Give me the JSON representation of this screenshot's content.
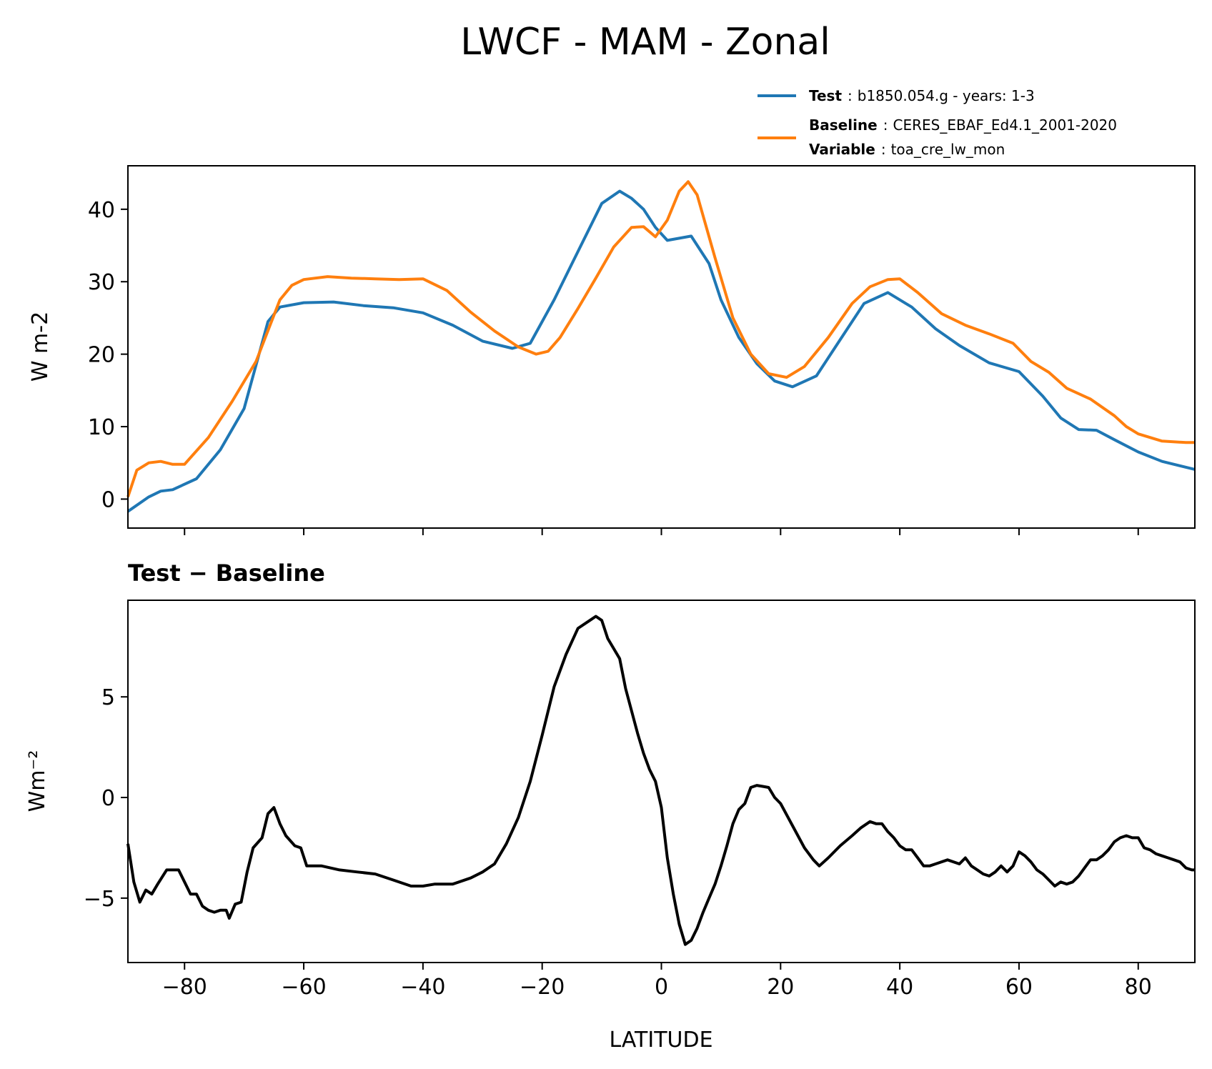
{
  "figure": {
    "title": "LWCF - MAM - Zonal"
  },
  "colors": {
    "test": "#1f77b4",
    "baseline": "#ff7f0e",
    "diff": "#000000"
  },
  "legend": {
    "test_key": "Test",
    "test_value": "b1850.054.g - years: 1-3",
    "baseline_key": "Baseline",
    "baseline_value": "CERES_EBAF_Ed4.1_2001-2020",
    "variable_key": "Variable",
    "variable_value": "toa_cre_lw_mon",
    "separator": ":"
  },
  "chart_data": [
    {
      "type": "line",
      "title": "",
      "xlabel": "",
      "ylabel": "W m-2",
      "xlim": [
        -89.5,
        89.5
      ],
      "ylim": [
        -4,
        46
      ],
      "yticks": [
        0,
        10,
        20,
        30,
        40
      ],
      "ytick_labels": [
        "0",
        "10",
        "20",
        "30",
        "40"
      ],
      "xticks": [
        -80,
        -60,
        -40,
        -20,
        0,
        20,
        40,
        60,
        80
      ],
      "series": [
        {
          "name": "Test",
          "x": [
            -89.5,
            -86,
            -84,
            -82,
            -78,
            -74,
            -70,
            -66,
            -64,
            -60,
            -55,
            -50,
            -45,
            -40,
            -35,
            -30,
            -25,
            -22,
            -18,
            -15,
            -10,
            -7,
            -5,
            -3,
            -1,
            1,
            3,
            5,
            8,
            10,
            13,
            16,
            19,
            22,
            26,
            30,
            34,
            38,
            42,
            46,
            50,
            55,
            60,
            64,
            67,
            70,
            73,
            76,
            80,
            84,
            89.5
          ],
          "values": [
            -1.7,
            0.3,
            1.1,
            1.3,
            2.8,
            6.8,
            12.5,
            24.5,
            26.5,
            27.1,
            27.2,
            26.7,
            26.4,
            25.7,
            24,
            21.8,
            20.8,
            21.5,
            27.5,
            32.5,
            40.8,
            42.5,
            41.5,
            40,
            37.5,
            35.7,
            36,
            36.3,
            32.5,
            27.5,
            22.3,
            18.7,
            16.3,
            15.5,
            17,
            22,
            27,
            28.5,
            26.5,
            23.5,
            21.2,
            18.8,
            17.6,
            14.2,
            11.2,
            9.6,
            9.5,
            8.2,
            6.5,
            5.2,
            4.1
          ]
        },
        {
          "name": "Baseline",
          "x": [
            -89.5,
            -88,
            -86,
            -84,
            -82,
            -80,
            -76,
            -72,
            -68,
            -64,
            -62,
            -60,
            -56,
            -52,
            -48,
            -44,
            -40,
            -36,
            -32,
            -28,
            -24,
            -21,
            -19,
            -17,
            -14,
            -11,
            -8,
            -5,
            -3,
            -1,
            1,
            3,
            4.5,
            6,
            9,
            12,
            15,
            18,
            21,
            24,
            28,
            32,
            35,
            38,
            40,
            43,
            47,
            51,
            55,
            59,
            62,
            65,
            68,
            72,
            76,
            78,
            80,
            84,
            88,
            89.5
          ],
          "values": [
            0.3,
            4,
            5,
            5.2,
            4.8,
            4.8,
            8.5,
            13.5,
            19,
            27.5,
            29.5,
            30.3,
            30.7,
            30.5,
            30.4,
            30.3,
            30.4,
            28.8,
            25.8,
            23.2,
            21,
            20,
            20.4,
            22.3,
            26.3,
            30.5,
            34.8,
            37.5,
            37.6,
            36.2,
            38.5,
            42.5,
            43.8,
            42,
            33.3,
            25,
            20,
            17.3,
            16.8,
            18.3,
            22.3,
            27,
            29.3,
            30.3,
            30.4,
            28.5,
            25.6,
            24,
            22.8,
            21.5,
            19,
            17.5,
            15.3,
            13.8,
            11.5,
            10,
            9,
            8,
            7.8,
            7.8
          ]
        }
      ]
    },
    {
      "type": "line",
      "title": "Test − Baseline",
      "xlabel": "LATITUDE",
      "ylabel": "Wm⁻²",
      "xlim": [
        -89.5,
        89.5
      ],
      "ylim": [
        -8.2,
        9.8
      ],
      "yticks": [
        -5,
        0,
        5
      ],
      "ytick_labels": [
        "−5",
        "0",
        "5"
      ],
      "xticks": [
        -80,
        -60,
        -40,
        -20,
        0,
        20,
        40,
        60,
        80
      ],
      "xtick_labels": [
        "−80",
        "−60",
        "−40",
        "−20",
        "0",
        "20",
        "40",
        "60",
        "80"
      ],
      "series": [
        {
          "name": "Test − Baseline",
          "x": [
            -89.5,
            -88.5,
            -87.5,
            -86.5,
            -85.5,
            -84.5,
            -83,
            -81,
            -79,
            -78,
            -77,
            -76,
            -75,
            -74,
            -73,
            -72.5,
            -71.5,
            -70.5,
            -69.5,
            -68.5,
            -67,
            -66,
            -65,
            -64,
            -63,
            -61.5,
            -60.5,
            -59.5,
            -57,
            -54,
            -51,
            -48,
            -45,
            -42,
            -40,
            -38,
            -35,
            -32,
            -30,
            -28,
            -26,
            -24,
            -22,
            -20,
            -18,
            -16,
            -14,
            -12,
            -11,
            -10,
            -9,
            -7,
            -6,
            -5,
            -4,
            -3,
            -2,
            -1,
            0,
            1,
            2,
            3,
            4,
            5,
            6,
            7,
            8,
            9,
            10,
            11,
            12,
            13,
            14,
            15,
            16,
            17,
            18,
            19,
            20,
            22,
            24,
            25.5,
            26.5,
            28,
            30,
            32,
            33.5,
            35,
            36,
            37,
            38,
            39,
            40,
            41,
            42,
            43,
            44,
            45,
            46,
            48,
            50,
            51,
            52,
            53,
            54,
            55,
            56,
            57,
            58,
            59,
            60,
            61,
            62,
            63,
            64,
            65,
            66,
            67,
            68,
            69,
            70,
            71,
            72,
            73,
            74,
            75,
            76,
            77,
            78,
            79,
            80,
            81,
            82,
            83,
            84,
            85,
            86,
            87,
            88,
            89,
            89.5
          ],
          "values": [
            -2.3,
            -4.2,
            -5.2,
            -4.6,
            -4.8,
            -4.3,
            -3.6,
            -3.6,
            -4.8,
            -4.8,
            -5.4,
            -5.6,
            -5.7,
            -5.6,
            -5.6,
            -6,
            -5.3,
            -5.2,
            -3.7,
            -2.5,
            -2.0,
            -0.8,
            -0.5,
            -1.3,
            -1.9,
            -2.4,
            -2.5,
            -3.4,
            -3.4,
            -3.6,
            -3.7,
            -3.8,
            -4.1,
            -4.4,
            -4.4,
            -4.3,
            -4.3,
            -4.0,
            -3.7,
            -3.3,
            -2.3,
            -1.0,
            0.8,
            3.1,
            5.5,
            7.1,
            8.4,
            8.8,
            9.0,
            8.8,
            7.9,
            6.9,
            5.4,
            4.3,
            3.2,
            2.2,
            1.4,
            0.8,
            -0.5,
            -3.0,
            -4.8,
            -6.3,
            -7.3,
            -7.1,
            -6.5,
            -5.7,
            -5.0,
            -4.3,
            -3.4,
            -2.4,
            -1.3,
            -0.6,
            -0.3,
            0.5,
            0.6,
            0.55,
            0.5,
            0.0,
            -0.3,
            -1.4,
            -2.5,
            -3.1,
            -3.4,
            -3.0,
            -2.4,
            -1.9,
            -1.5,
            -1.2,
            -1.3,
            -1.3,
            -1.7,
            -2.0,
            -2.4,
            -2.6,
            -2.6,
            -3.0,
            -3.4,
            -3.4,
            -3.3,
            -3.1,
            -3.3,
            -3.0,
            -3.4,
            -3.6,
            -3.8,
            -3.9,
            -3.7,
            -3.4,
            -3.7,
            -3.4,
            -2.7,
            -2.9,
            -3.2,
            -3.6,
            -3.8,
            -4.1,
            -4.4,
            -4.2,
            -4.3,
            -4.2,
            -3.9,
            -3.5,
            -3.1,
            -3.1,
            -2.9,
            -2.6,
            -2.2,
            -2.0,
            -1.9,
            -2.0,
            -2.0,
            -2.5,
            -2.6,
            -2.8,
            -2.9,
            -3.0,
            -3.1,
            -3.2,
            -3.5,
            -3.6,
            -3.6
          ]
        }
      ]
    }
  ]
}
